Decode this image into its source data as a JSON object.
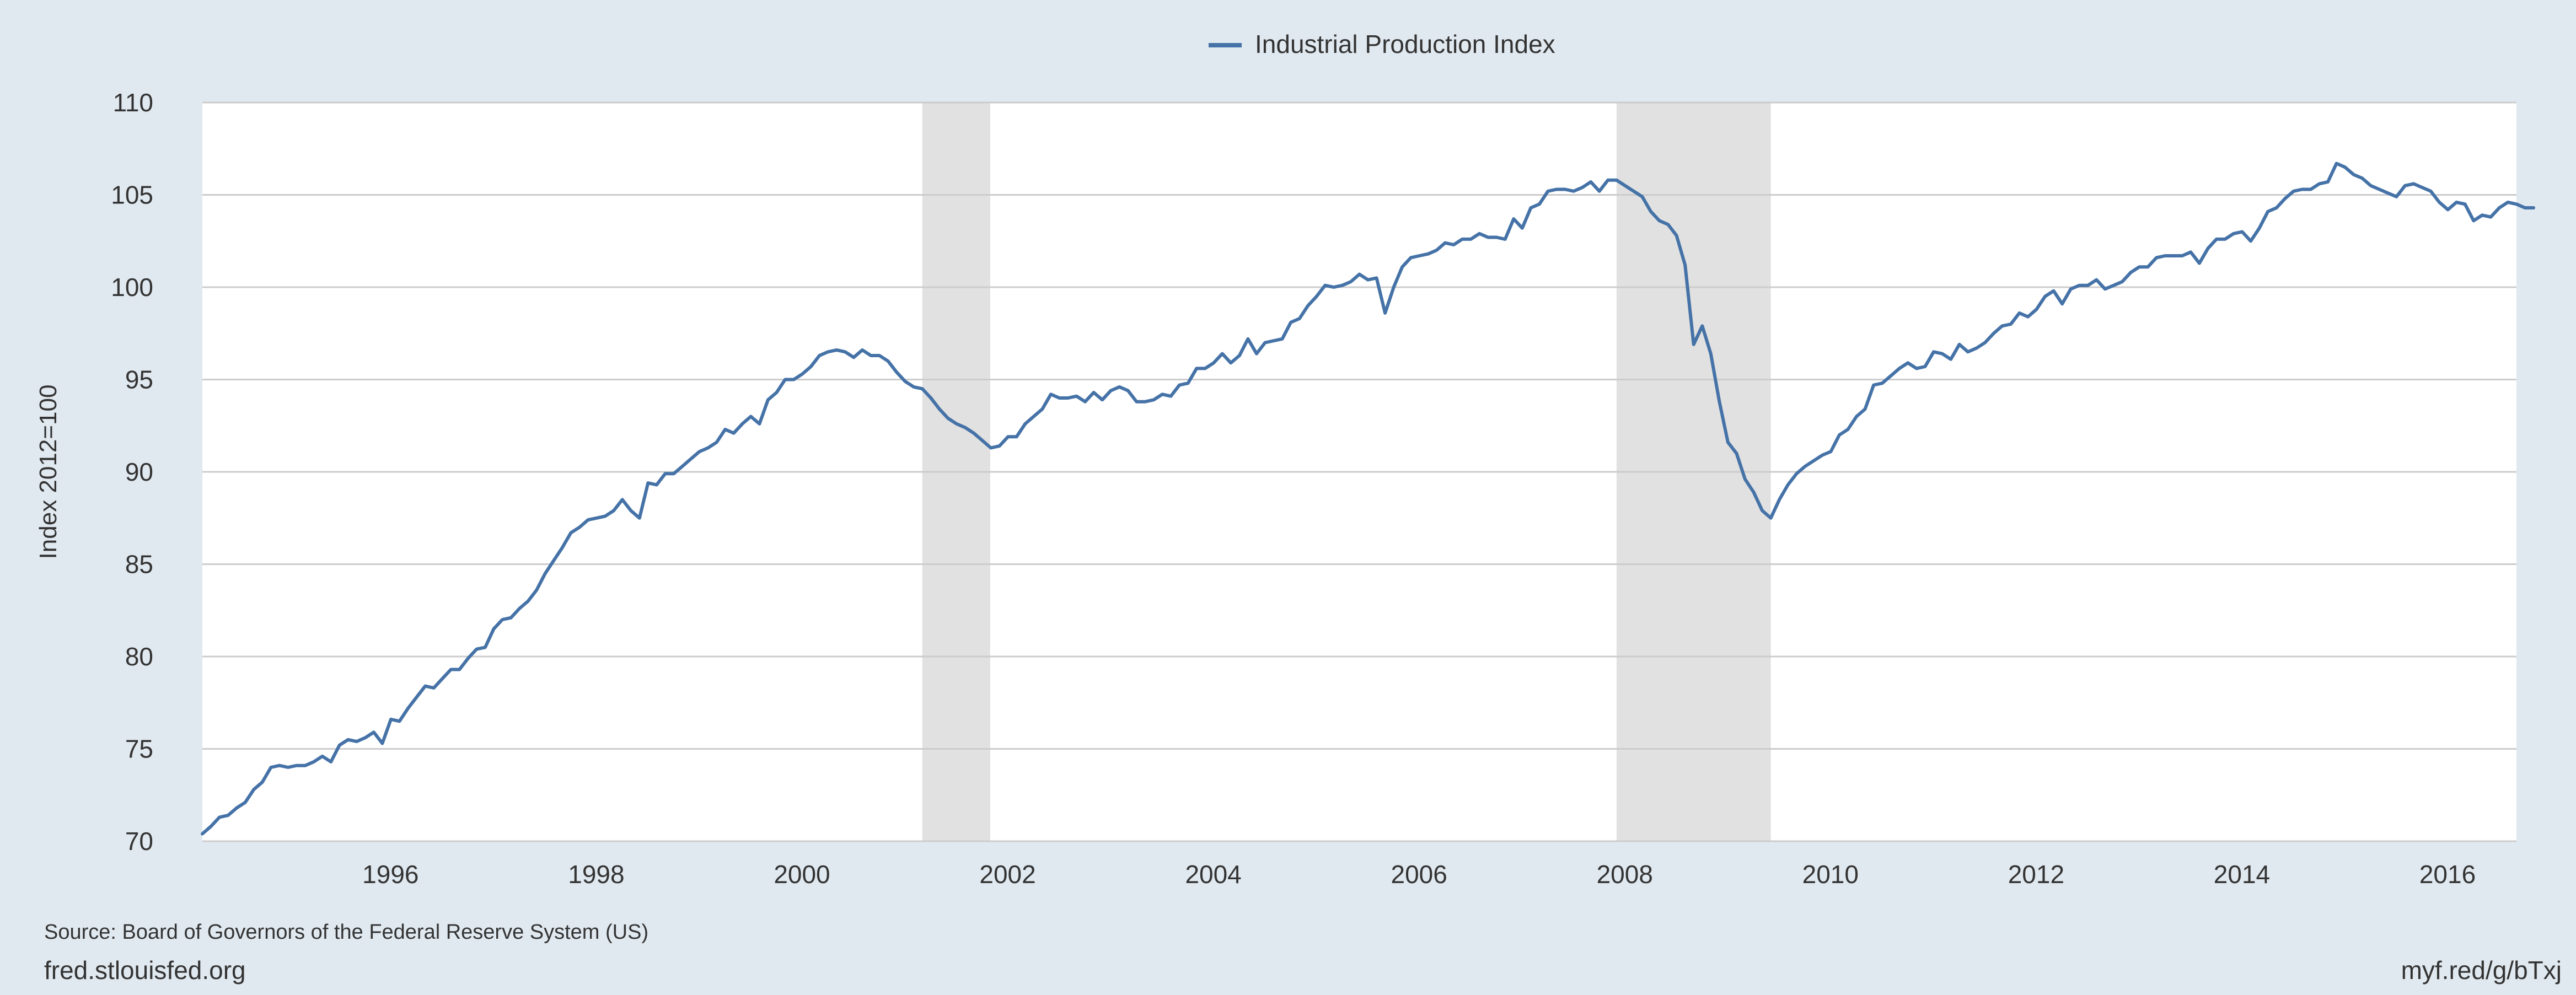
{
  "chart_data": {
    "type": "line",
    "title": "",
    "xlabel": "",
    "ylabel": "Index 2012=100",
    "xlim": [
      1994.17,
      2016.67
    ],
    "ylim": [
      70,
      110
    ],
    "yticks": [
      70,
      75,
      80,
      85,
      90,
      95,
      100,
      105,
      110
    ],
    "xticks": [
      "1996",
      "1998",
      "2000",
      "2002",
      "2004",
      "2006",
      "2008",
      "2010",
      "2012",
      "2014",
      "2016"
    ],
    "grid": "horizontal",
    "legend_position": "top-center",
    "recessions": [
      [
        2001.17,
        2001.83
      ],
      [
        2007.92,
        2009.42
      ]
    ],
    "series": [
      {
        "name": "Industrial Production Index",
        "color": "#4572a7",
        "x_start": 1994.17,
        "x_step_months": 1,
        "values": [
          70.4,
          70.8,
          71.3,
          71.4,
          71.8,
          72.1,
          72.8,
          73.2,
          74.0,
          74.1,
          74.0,
          74.1,
          74.1,
          74.3,
          74.6,
          74.3,
          75.2,
          75.5,
          75.4,
          75.6,
          75.9,
          75.3,
          76.6,
          76.5,
          77.2,
          77.8,
          78.4,
          78.3,
          78.8,
          79.3,
          79.3,
          79.9,
          80.4,
          80.5,
          81.5,
          82.0,
          82.1,
          82.6,
          83.0,
          83.6,
          84.5,
          85.2,
          85.9,
          86.7,
          87.0,
          87.4,
          87.5,
          87.6,
          87.9,
          88.5,
          87.9,
          87.5,
          89.4,
          89.3,
          89.9,
          89.9,
          90.3,
          90.7,
          91.1,
          91.3,
          91.6,
          92.3,
          92.1,
          92.6,
          93.0,
          92.6,
          93.9,
          94.3,
          95.0,
          95.0,
          95.3,
          95.7,
          96.3,
          96.5,
          96.6,
          96.5,
          96.2,
          96.6,
          96.3,
          96.3,
          96.0,
          95.4,
          94.9,
          94.6,
          94.5,
          94.0,
          93.4,
          92.9,
          92.6,
          92.4,
          92.1,
          91.7,
          91.3,
          91.4,
          91.9,
          91.9,
          92.6,
          93.0,
          93.4,
          94.2,
          94.0,
          94.0,
          94.1,
          93.8,
          94.3,
          93.9,
          94.4,
          94.6,
          94.4,
          93.8,
          93.8,
          93.9,
          94.2,
          94.1,
          94.7,
          94.8,
          95.6,
          95.6,
          95.9,
          96.4,
          95.9,
          96.3,
          97.2,
          96.4,
          97.0,
          97.1,
          97.2,
          98.1,
          98.3,
          99.0,
          99.5,
          100.1,
          100.0,
          100.1,
          100.3,
          100.7,
          100.4,
          100.5,
          98.6,
          100.0,
          101.1,
          101.6,
          101.7,
          101.8,
          102.0,
          102.4,
          102.3,
          102.6,
          102.6,
          102.9,
          102.7,
          102.7,
          102.6,
          103.7,
          103.2,
          104.3,
          104.5,
          105.2,
          105.3,
          105.3,
          105.2,
          105.4,
          105.7,
          105.2,
          105.8,
          105.8,
          105.5,
          105.2,
          104.9,
          104.1,
          103.6,
          103.4,
          102.8,
          101.2,
          96.9,
          97.9,
          96.4,
          93.8,
          91.6,
          91.0,
          89.6,
          88.9,
          87.9,
          87.5,
          88.5,
          89.3,
          89.9,
          90.3,
          90.6,
          90.9,
          91.1,
          92.0,
          92.3,
          93.0,
          93.4,
          94.7,
          94.8,
          95.2,
          95.6,
          95.9,
          95.6,
          95.7,
          96.5,
          96.4,
          96.1,
          96.9,
          96.5,
          96.7,
          97.0,
          97.5,
          97.9,
          98.0,
          98.6,
          98.4,
          98.8,
          99.5,
          99.8,
          99.1,
          99.9,
          100.1,
          100.1,
          100.4,
          99.9,
          100.1,
          100.3,
          100.8,
          101.1,
          101.1,
          101.6,
          101.7,
          101.7,
          101.7,
          101.9,
          101.3,
          102.1,
          102.6,
          102.6,
          102.9,
          103.0,
          102.5,
          103.2,
          104.1,
          104.3,
          104.8,
          105.2,
          105.3,
          105.3,
          105.6,
          105.7,
          106.7,
          106.5,
          106.1,
          105.9,
          105.5,
          105.3,
          105.1,
          104.9,
          105.5,
          105.6,
          105.4,
          105.2,
          104.6,
          104.2,
          104.6,
          104.5,
          103.6,
          103.9,
          103.8,
          104.3,
          104.6,
          104.5,
          104.3,
          104.3
        ]
      }
    ]
  },
  "footer": {
    "source": "Source: Board of Governors of the Federal Reserve System (US)",
    "site": "fred.stlouisfed.org",
    "short_url": "myf.red/g/bTxj"
  }
}
